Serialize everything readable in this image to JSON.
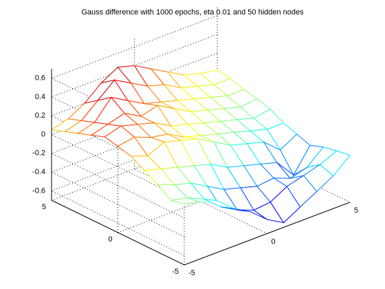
{
  "chart_data": {
    "type": "surface3d",
    "title": "Gauss difference with 1000 epochs, eta 0.01 and 50 hidden nodes",
    "xlabel": "",
    "ylabel": "",
    "zlabel": "",
    "x_ticks": [
      "-5",
      "0",
      "5"
    ],
    "y_ticks": [
      "-5",
      "0",
      "5"
    ],
    "z_ticks": [
      "-0.6",
      "-0.4",
      "-0.2",
      "0",
      "0.2",
      "0.4",
      "0.6"
    ],
    "xlim": [
      -5,
      5
    ],
    "ylim": [
      -5,
      5
    ],
    "zlim": [
      -0.7,
      0.7
    ],
    "grid": true,
    "colormap": "jet",
    "x": [
      -5,
      -4,
      -3,
      -2,
      -1,
      0,
      1,
      2,
      3,
      4,
      5
    ],
    "y": [
      -5,
      -4,
      -3,
      -2,
      -1,
      0,
      1,
      2,
      3,
      4,
      5
    ],
    "z": [
      [
        -0.05,
        -0.1,
        -0.15,
        -0.3,
        -0.4,
        -0.55,
        -0.65,
        -0.55,
        -0.45,
        -0.35,
        -0.2
      ],
      [
        -0.08,
        -0.12,
        -0.2,
        -0.35,
        -0.45,
        -0.52,
        -0.5,
        -0.4,
        -0.35,
        -0.3,
        -0.22
      ],
      [
        0.02,
        -0.05,
        -0.1,
        -0.2,
        -0.3,
        -0.35,
        -0.4,
        -0.38,
        -0.45,
        -0.4,
        -0.25
      ],
      [
        0.1,
        0.05,
        0.0,
        -0.05,
        -0.1,
        -0.2,
        -0.25,
        -0.3,
        -0.35,
        -0.55,
        -0.3
      ],
      [
        0.18,
        0.12,
        0.2,
        0.15,
        0.1,
        0.0,
        -0.1,
        -0.15,
        -0.2,
        -0.35,
        -0.25
      ],
      [
        0.22,
        0.25,
        0.18,
        0.15,
        0.05,
        0.0,
        -0.05,
        -0.1,
        -0.15,
        -0.2,
        -0.2
      ],
      [
        0.25,
        0.3,
        0.25,
        0.2,
        0.1,
        0.05,
        0.0,
        -0.05,
        -0.1,
        -0.15,
        -0.12
      ],
      [
        0.2,
        0.25,
        0.3,
        0.2,
        0.25,
        0.15,
        0.05,
        0.0,
        -0.05,
        -0.1,
        -0.08
      ],
      [
        0.15,
        0.2,
        0.4,
        0.3,
        0.2,
        0.15,
        0.1,
        0.05,
        0.0,
        -0.05,
        -0.05
      ],
      [
        0.1,
        0.15,
        0.3,
        0.45,
        0.35,
        0.25,
        0.2,
        0.1,
        0.05,
        0.0,
        0.0
      ],
      [
        0.05,
        0.1,
        0.2,
        0.35,
        0.45,
        0.4,
        0.3,
        0.2,
        0.1,
        0.05,
        0.02
      ]
    ]
  }
}
